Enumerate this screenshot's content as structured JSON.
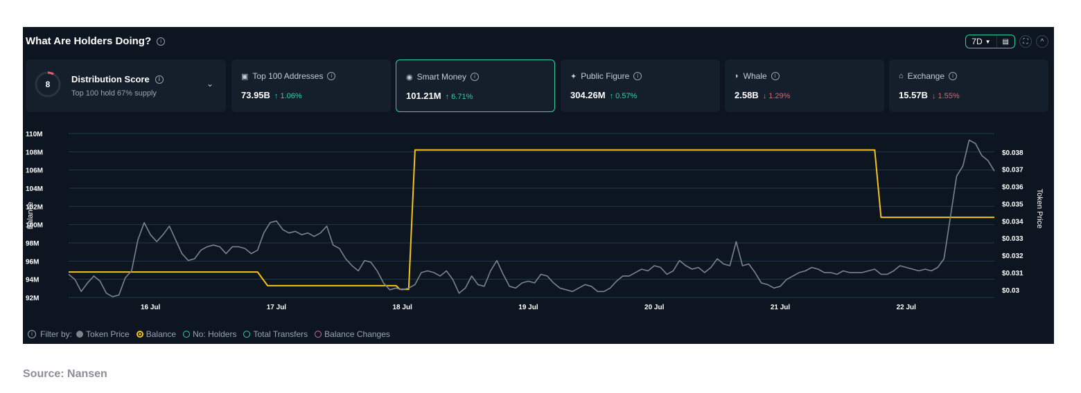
{
  "header": {
    "title": "What Are Holders Doing?",
    "range_label": "7D",
    "calc_icon": "calendar-icon",
    "expand_icon": "expand-icon",
    "collapse_icon": "chevron-up-icon"
  },
  "distribution": {
    "score": "8",
    "label": "Distribution Score",
    "subtitle": "Top 100 hold 67% supply",
    "score_fraction": 0.08
  },
  "cards": [
    {
      "label": "Top 100 Addresses",
      "icon": "wallet-icon",
      "value": "73.95B",
      "change": "↑ 1.06%",
      "direction": "up"
    },
    {
      "label": "Smart Money",
      "icon": "brain-icon",
      "value": "101.21M",
      "change": "↑ 6.71%",
      "direction": "up"
    },
    {
      "label": "Public Figure",
      "icon": "star-person-icon",
      "value": "304.26M",
      "change": "↑ 0.57%",
      "direction": "up"
    },
    {
      "label": "Whale",
      "icon": "whale-icon",
      "value": "2.58B",
      "change": "↓ 1.29%",
      "direction": "down"
    },
    {
      "label": "Exchange",
      "icon": "bank-icon",
      "value": "15.57B",
      "change": "↓ 1.55%",
      "direction": "down"
    }
  ],
  "filters": {
    "label": "Filter by:",
    "items": [
      {
        "label": "Token Price",
        "style": "filled-gray"
      },
      {
        "label": "Balance",
        "style": "ring-yellow"
      },
      {
        "label": "No: Holders",
        "style": "ring-teal"
      },
      {
        "label": "Total Transfers",
        "style": "ring-teal"
      },
      {
        "label": "Balance Changes",
        "style": "ring-pink"
      }
    ]
  },
  "colors": {
    "background": "#0c1520",
    "card": "#151f2b",
    "accent": "#2fd1a6",
    "up": "#2fd1a6",
    "down": "#f05c6b",
    "balance_line": "#f5c518",
    "price_line": "#7d848c",
    "grid": "#1d3a4d"
  },
  "source": "Source: Nansen",
  "chart_data": {
    "type": "line",
    "x_ticks": [
      "16 Jul",
      "17 Jul",
      "18 Jul",
      "19 Jul",
      "20 Jul",
      "21 Jul",
      "22 Jul"
    ],
    "x_range": [
      15.35,
      22.7
    ],
    "ylabel_left": "Balance",
    "ylabel_right": "Token Price",
    "left_ticks": [
      "110M",
      "108M",
      "106M",
      "104M",
      "102M",
      "100M",
      "98M",
      "96M",
      "94M",
      "92M"
    ],
    "left_range": [
      92,
      110
    ],
    "right_ticks": [
      "$0.038",
      "$0.037",
      "$0.036",
      "$0.035",
      "$0.034",
      "$0.033",
      "$0.032",
      "$0.031",
      "$0.03"
    ],
    "right_range": [
      0.02955,
      0.03908
    ],
    "series": [
      {
        "name": "Balance",
        "axis": "left",
        "points": [
          [
            15.35,
            94.8
          ],
          [
            16.85,
            94.8
          ],
          [
            16.93,
            93.3
          ],
          [
            17.95,
            93.3
          ],
          [
            17.98,
            92.9
          ],
          [
            18.05,
            92.9
          ],
          [
            18.1,
            108.2
          ],
          [
            21.75,
            108.2
          ],
          [
            21.8,
            100.8
          ],
          [
            22.7,
            100.8
          ]
        ]
      },
      {
        "name": "Token Price",
        "axis": "right",
        "points": [
          [
            15.35,
            0.0309
          ],
          [
            15.4,
            0.0306
          ],
          [
            15.45,
            0.0299
          ],
          [
            15.5,
            0.0304
          ],
          [
            15.55,
            0.0308
          ],
          [
            15.6,
            0.0305
          ],
          [
            15.65,
            0.0298
          ],
          [
            15.7,
            0.0296
          ],
          [
            15.75,
            0.0297
          ],
          [
            15.8,
            0.0307
          ],
          [
            15.85,
            0.0311
          ],
          [
            15.9,
            0.0329
          ],
          [
            15.95,
            0.0339
          ],
          [
            16.0,
            0.0332
          ],
          [
            16.05,
            0.0328
          ],
          [
            16.1,
            0.0332
          ],
          [
            16.15,
            0.0337
          ],
          [
            16.2,
            0.0329
          ],
          [
            16.25,
            0.0321
          ],
          [
            16.3,
            0.0317
          ],
          [
            16.35,
            0.0318
          ],
          [
            16.4,
            0.0323
          ],
          [
            16.45,
            0.0325
          ],
          [
            16.5,
            0.0326
          ],
          [
            16.55,
            0.0325
          ],
          [
            16.6,
            0.0321
          ],
          [
            16.65,
            0.0325
          ],
          [
            16.7,
            0.0325
          ],
          [
            16.75,
            0.0324
          ],
          [
            16.8,
            0.0321
          ],
          [
            16.85,
            0.0323
          ],
          [
            16.9,
            0.0333
          ],
          [
            16.95,
            0.0339
          ],
          [
            17.0,
            0.034
          ],
          [
            17.05,
            0.0335
          ],
          [
            17.1,
            0.0333
          ],
          [
            17.15,
            0.0334
          ],
          [
            17.2,
            0.0332
          ],
          [
            17.25,
            0.0333
          ],
          [
            17.3,
            0.0331
          ],
          [
            17.35,
            0.0333
          ],
          [
            17.4,
            0.0337
          ],
          [
            17.45,
            0.0326
          ],
          [
            17.5,
            0.0324
          ],
          [
            17.55,
            0.0318
          ],
          [
            17.6,
            0.0314
          ],
          [
            17.65,
            0.0311
          ],
          [
            17.7,
            0.0317
          ],
          [
            17.75,
            0.0316
          ],
          [
            17.8,
            0.0311
          ],
          [
            17.85,
            0.0304
          ],
          [
            17.9,
            0.03
          ],
          [
            17.95,
            0.0301
          ],
          [
            18.0,
            0.03
          ],
          [
            18.05,
            0.0301
          ],
          [
            18.1,
            0.0303
          ],
          [
            18.15,
            0.031
          ],
          [
            18.2,
            0.0311
          ],
          [
            18.25,
            0.031
          ],
          [
            18.3,
            0.0308
          ],
          [
            18.35,
            0.0311
          ],
          [
            18.4,
            0.0306
          ],
          [
            18.45,
            0.0298
          ],
          [
            18.5,
            0.0301
          ],
          [
            18.55,
            0.0308
          ],
          [
            18.6,
            0.0303
          ],
          [
            18.65,
            0.0302
          ],
          [
            18.7,
            0.0311
          ],
          [
            18.75,
            0.0317
          ],
          [
            18.8,
            0.0309
          ],
          [
            18.85,
            0.0302
          ],
          [
            18.9,
            0.0301
          ],
          [
            18.95,
            0.0304
          ],
          [
            19.0,
            0.0305
          ],
          [
            19.05,
            0.0304
          ],
          [
            19.1,
            0.0309
          ],
          [
            19.15,
            0.0308
          ],
          [
            19.2,
            0.0304
          ],
          [
            19.25,
            0.0301
          ],
          [
            19.3,
            0.03
          ],
          [
            19.35,
            0.0299
          ],
          [
            19.4,
            0.0301
          ],
          [
            19.45,
            0.0303
          ],
          [
            19.5,
            0.0302
          ],
          [
            19.55,
            0.0299
          ],
          [
            19.6,
            0.0299
          ],
          [
            19.65,
            0.0301
          ],
          [
            19.7,
            0.0305
          ],
          [
            19.75,
            0.0308
          ],
          [
            19.8,
            0.0308
          ],
          [
            19.85,
            0.031
          ],
          [
            19.9,
            0.0312
          ],
          [
            19.95,
            0.0311
          ],
          [
            20.0,
            0.0314
          ],
          [
            20.05,
            0.0313
          ],
          [
            20.1,
            0.0309
          ],
          [
            20.15,
            0.0311
          ],
          [
            20.2,
            0.0317
          ],
          [
            20.25,
            0.0314
          ],
          [
            20.3,
            0.0312
          ],
          [
            20.35,
            0.0313
          ],
          [
            20.4,
            0.031
          ],
          [
            20.45,
            0.0313
          ],
          [
            20.5,
            0.0318
          ],
          [
            20.55,
            0.0315
          ],
          [
            20.6,
            0.0314
          ],
          [
            20.65,
            0.0328
          ],
          [
            20.7,
            0.0314
          ],
          [
            20.75,
            0.0315
          ],
          [
            20.8,
            0.031
          ],
          [
            20.85,
            0.0304
          ],
          [
            20.9,
            0.0303
          ],
          [
            20.95,
            0.0301
          ],
          [
            21.0,
            0.0302
          ],
          [
            21.05,
            0.0306
          ],
          [
            21.1,
            0.0308
          ],
          [
            21.15,
            0.031
          ],
          [
            21.2,
            0.0311
          ],
          [
            21.25,
            0.0313
          ],
          [
            21.3,
            0.0312
          ],
          [
            21.35,
            0.031
          ],
          [
            21.4,
            0.031
          ],
          [
            21.45,
            0.0309
          ],
          [
            21.5,
            0.0311
          ],
          [
            21.55,
            0.031
          ],
          [
            21.6,
            0.031
          ],
          [
            21.65,
            0.031
          ],
          [
            21.7,
            0.0311
          ],
          [
            21.75,
            0.0312
          ],
          [
            21.8,
            0.0309
          ],
          [
            21.85,
            0.0309
          ],
          [
            21.9,
            0.0311
          ],
          [
            21.95,
            0.0314
          ],
          [
            22.0,
            0.0313
          ],
          [
            22.05,
            0.0312
          ],
          [
            22.1,
            0.0311
          ],
          [
            22.15,
            0.0312
          ],
          [
            22.2,
            0.0311
          ],
          [
            22.25,
            0.0313
          ],
          [
            22.3,
            0.0318
          ],
          [
            22.35,
            0.0342
          ],
          [
            22.4,
            0.0366
          ],
          [
            22.45,
            0.0372
          ],
          [
            22.5,
            0.0387
          ],
          [
            22.55,
            0.0385
          ],
          [
            22.6,
            0.0378
          ],
          [
            22.65,
            0.0375
          ],
          [
            22.7,
            0.0369
          ]
        ]
      }
    ]
  }
}
